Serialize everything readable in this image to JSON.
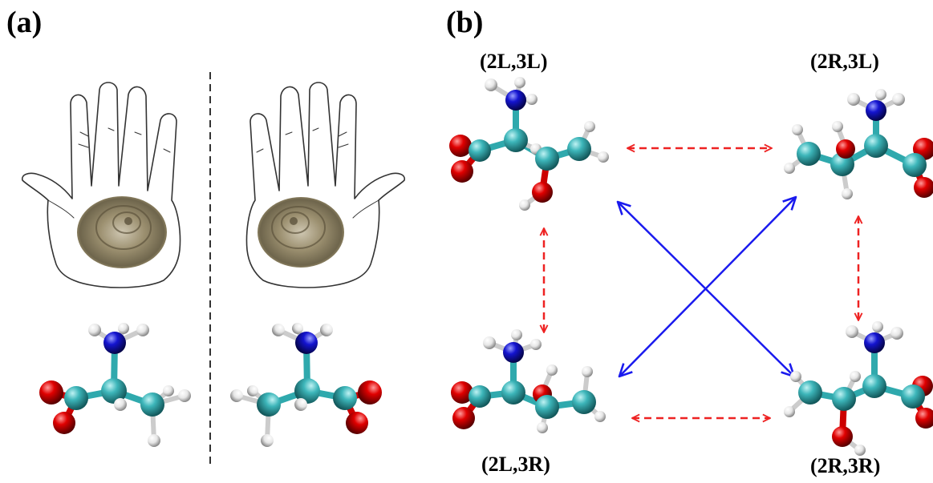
{
  "panel_a": {
    "label": "(a)"
  },
  "panel_b": {
    "label": "(b)",
    "isomers": {
      "top_left": "(2L,3L)",
      "top_right": "(2R,3L)",
      "bottom_left": "(2L,3R)",
      "bottom_right": "(2R,3R)"
    },
    "relations": [
      {
        "from": "top_left",
        "to": "top_right",
        "style": "dashed",
        "color": "#ee2222"
      },
      {
        "from": "bottom_left",
        "to": "bottom_right",
        "style": "dashed",
        "color": "#ee2222"
      },
      {
        "from": "top_left",
        "to": "bottom_left",
        "style": "dashed",
        "color": "#ee2222"
      },
      {
        "from": "top_right",
        "to": "bottom_right",
        "style": "dashed",
        "color": "#ee2222"
      },
      {
        "from": "top_left",
        "to": "bottom_right",
        "style": "solid",
        "color": "#1a1aee"
      },
      {
        "from": "top_right",
        "to": "bottom_left",
        "style": "solid",
        "color": "#1a1aee"
      }
    ]
  },
  "atom_colors": {
    "carbon": "#2fa9ad",
    "oxygen": "#d40000",
    "nitrogen": "#1010c8",
    "hydrogen": "#f2f2f2"
  }
}
